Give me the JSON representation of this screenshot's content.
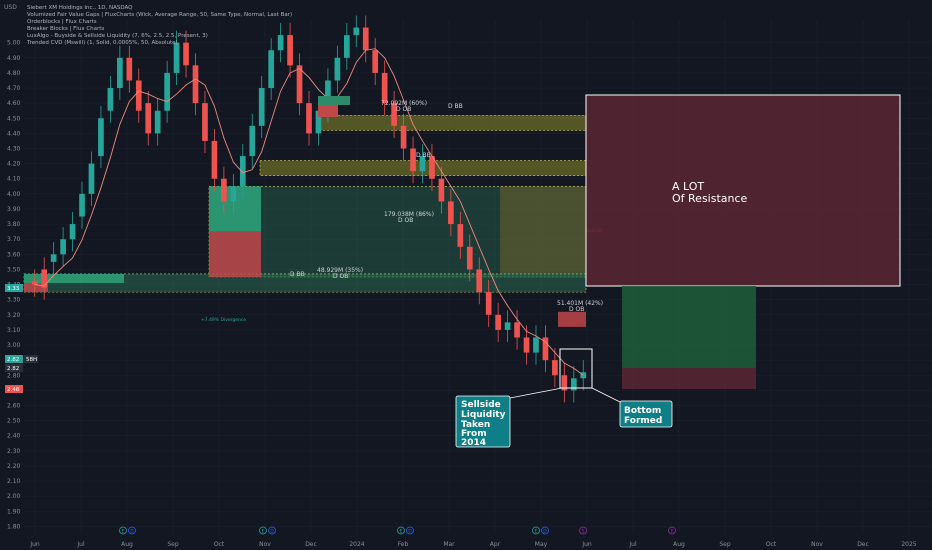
{
  "colors": {
    "background": "#131722",
    "up_candle": "#26a69a",
    "down_candle": "#ef5350",
    "ma_line": "#ef8a7a",
    "grid": "#1e2230",
    "axis_text": "#8a8f9c",
    "ob_bull": "#2e7d5b",
    "ob_bear": "#b23b3b",
    "breaker": "#8c8a2a",
    "resistance_fill": "#5c2633",
    "callout_bg": "#0e7f86"
  },
  "header": {
    "currency": "USD",
    "symbol": "Siebert XM Holdings Inc., 1D, NASDAQ",
    "indicators": [
      "Volumized Fair Value Gaps | FluxCharts (Wick, Average Range, 50, Same Type, Normal, Last Bar)",
      "Orderblocks | Flux Charts",
      "Breaker Blocks | Flux Charts",
      "LuxAlgo - Buyside & Sellside Liquidity (7, 6%, 2.5, 2.5, Present, 3)",
      "Trended CVD (Mswill) (1, Solid, 0.0005%, 50, Absolute)"
    ]
  },
  "price_badges": {
    "green": "3.33",
    "current_a": "2.82",
    "current_b": "2.82",
    "timer": "58H",
    "red": "2.48"
  },
  "zones": {
    "ob_top": "72.092M (60%)",
    "ob_top_sub": "D OB",
    "bb_top_small": "D BB",
    "bb_mid": "D BB",
    "ob_big": "179.038M (86%)",
    "ob_big_sub": "D OB",
    "bb_low": "D BB",
    "ob_low": "48.929M (35%)",
    "ob_low_sub": "D OB",
    "ob_right": "51.401M (42%)",
    "ob_right_sub": "D OB",
    "divergence": "+7.49% Divergence",
    "ma_label": "Bearish"
  },
  "annotations": {
    "resistance": [
      "A LOT",
      "Of Resistance"
    ],
    "sellside": [
      "Sellside",
      "Liquidity",
      "Taken",
      "From",
      "2014"
    ],
    "bottom": [
      "Bottom",
      "Formed"
    ]
  },
  "event_markers": [
    {
      "label": "E",
      "color": "#26a69a"
    },
    {
      "label": "D",
      "color": "#2962ff"
    },
    {
      "label": "E",
      "color": "#26a69a"
    },
    {
      "label": "D",
      "color": "#2962ff"
    },
    {
      "label": "E",
      "color": "#26a69a"
    },
    {
      "label": "D",
      "color": "#2962ff"
    },
    {
      "label": "E",
      "color": "#26a69a"
    },
    {
      "label": "D",
      "color": "#2962ff"
    },
    {
      "label": "S",
      "color": "#9c27b0"
    },
    {
      "label": "E",
      "color": "#9c27b0"
    }
  ],
  "chart_data": {
    "type": "candlestick",
    "title": "Siebert XM Holdings Inc., 1D, NASDAQ",
    "ylabel": "USD",
    "ylim": [
      1.75,
      5.15
    ],
    "y_ticks": [
      "5.00",
      "4.90",
      "4.80",
      "4.70",
      "4.60",
      "4.50",
      "4.40",
      "4.30",
      "4.20",
      "4.10",
      "4.00",
      "3.90",
      "3.80",
      "3.70",
      "3.60",
      "3.50",
      "3.40",
      "3.30",
      "3.20",
      "3.10",
      "3.00",
      "2.90",
      "2.80",
      "2.70",
      "2.60",
      "2.50",
      "2.40",
      "2.30",
      "2.20",
      "2.10",
      "2.00",
      "1.90",
      "1.80"
    ],
    "x_ticks": [
      "Jun",
      "Jul",
      "Aug",
      "Sep",
      "Oct",
      "Nov",
      "Dec",
      "2024",
      "Feb",
      "Mar",
      "Apr",
      "May",
      "Jun",
      "Jul",
      "Aug",
      "Sep",
      "Oct",
      "Nov",
      "Dec",
      "2025"
    ],
    "price_series": [
      [
        3.42,
        3.4
      ],
      [
        3.5,
        3.38
      ],
      [
        3.55,
        3.6
      ],
      [
        3.6,
        3.7
      ],
      [
        3.7,
        3.8
      ],
      [
        3.85,
        4.0
      ],
      [
        4.0,
        4.2
      ],
      [
        4.25,
        4.5
      ],
      [
        4.55,
        4.7
      ],
      [
        4.7,
        4.9
      ],
      [
        4.9,
        4.75
      ],
      [
        4.75,
        4.55
      ],
      [
        4.6,
        4.4
      ],
      [
        4.4,
        4.55
      ],
      [
        4.55,
        4.8
      ],
      [
        4.8,
        5.0
      ],
      [
        5.0,
        4.85
      ],
      [
        4.85,
        4.6
      ],
      [
        4.6,
        4.35
      ],
      [
        4.35,
        4.1
      ],
      [
        4.1,
        3.95
      ],
      [
        3.95,
        4.05
      ],
      [
        4.05,
        4.25
      ],
      [
        4.25,
        4.45
      ],
      [
        4.45,
        4.7
      ],
      [
        4.7,
        4.95
      ],
      [
        4.95,
        5.05
      ],
      [
        5.05,
        4.85
      ],
      [
        4.85,
        4.6
      ],
      [
        4.6,
        4.4
      ],
      [
        4.4,
        4.55
      ],
      [
        4.55,
        4.75
      ],
      [
        4.75,
        4.9
      ],
      [
        4.9,
        5.05
      ],
      [
        5.05,
        5.1
      ],
      [
        5.1,
        4.95
      ],
      [
        4.95,
        4.8
      ],
      [
        4.8,
        4.6
      ],
      [
        4.6,
        4.45
      ],
      [
        4.45,
        4.3
      ],
      [
        4.3,
        4.15
      ],
      [
        4.15,
        4.25
      ],
      [
        4.25,
        4.1
      ],
      [
        4.1,
        3.95
      ],
      [
        3.95,
        3.8
      ],
      [
        3.8,
        3.65
      ],
      [
        3.65,
        3.5
      ],
      [
        3.5,
        3.35
      ],
      [
        3.35,
        3.2
      ],
      [
        3.2,
        3.1
      ],
      [
        3.1,
        3.15
      ],
      [
        3.15,
        3.05
      ],
      [
        3.05,
        2.95
      ],
      [
        2.95,
        3.05
      ],
      [
        3.05,
        2.9
      ],
      [
        2.9,
        2.8
      ],
      [
        2.8,
        2.7
      ],
      [
        2.7,
        2.78
      ],
      [
        2.78,
        2.82
      ]
    ],
    "levels": {
      "resistance_box": [
        3.3,
        4.55
      ],
      "orderblock_top": [
        4.42,
        4.52
      ],
      "breaker_mid": [
        4.12,
        4.22
      ],
      "orderblock_big": [
        3.45,
        4.05
      ],
      "orderblock_low": [
        3.35,
        3.47
      ],
      "target_box": [
        2.7,
        3.3
      ],
      "stop_box": [
        2.48,
        2.7
      ]
    }
  }
}
